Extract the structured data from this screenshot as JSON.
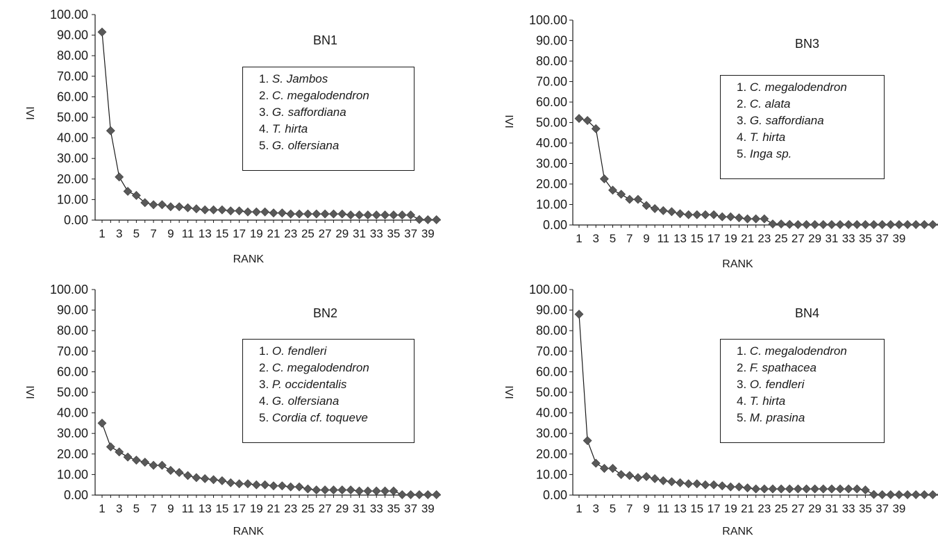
{
  "chart_data": [
    {
      "type": "line",
      "title": "BN1",
      "xlabel": "RANK",
      "ylabel": "IVI",
      "ylim": [
        0,
        100
      ],
      "xlim": [
        1,
        40
      ],
      "yticks": [
        "0.00",
        "10.00",
        "20.00",
        "30.00",
        "40.00",
        "50.00",
        "60.00",
        "70.00",
        "80.00",
        "90.00",
        "100.00"
      ],
      "xticks": [
        "1",
        "3",
        "5",
        "7",
        "9",
        "11",
        "13",
        "15",
        "17",
        "19",
        "21",
        "23",
        "25",
        "27",
        "29",
        "31",
        "33",
        "35",
        "37",
        "39"
      ],
      "legend": [
        {
          "num": "1.",
          "species": "S. Jambos"
        },
        {
          "num": "2.",
          "species": "C. megalodendron"
        },
        {
          "num": "3.",
          "species": "G. saffordiana"
        },
        {
          "num": "4.",
          "species": "T. hirta"
        },
        {
          "num": "5.",
          "species": "G. olfersiana"
        }
      ],
      "series": [
        {
          "values": [
            91.5,
            43.5,
            21,
            14,
            12,
            8.5,
            7.5,
            7.5,
            6.5,
            6.5,
            6,
            5.5,
            5,
            5,
            5,
            4.5,
            4.5,
            4,
            4,
            4,
            3.5,
            3.5,
            3,
            3,
            3,
            3,
            3,
            3,
            3,
            2.5,
            2.5,
            2.5,
            2.5,
            2.5,
            2.5,
            2.5,
            2.5,
            0.3,
            0.2,
            0.2
          ]
        }
      ]
    },
    {
      "type": "line",
      "title": "BN3",
      "xlabel": "RANK",
      "ylabel": "IVI",
      "ylim": [
        0,
        100
      ],
      "xlim": [
        1,
        44
      ],
      "yticks": [
        "0.00",
        "10.00",
        "20.00",
        "30.00",
        "40.00",
        "50.00",
        "60.00",
        "70.00",
        "80.00",
        "90.00",
        "100.00"
      ],
      "xticks": [
        "1",
        "3",
        "5",
        "7",
        "9",
        "11",
        "13",
        "15",
        "17",
        "19",
        "21",
        "23",
        "25",
        "27",
        "29",
        "31",
        "33",
        "35",
        "37",
        "39"
      ],
      "legend": [
        {
          "num": "1.",
          "species": "C. megalodendron"
        },
        {
          "num": "2.",
          "species": "C. alata"
        },
        {
          "num": "3.",
          "species": "G. saffordiana"
        },
        {
          "num": "4.",
          "species": "T. hirta"
        },
        {
          "num": "5.",
          "species": "Inga sp."
        }
      ],
      "series": [
        {
          "values": [
            52,
            51,
            47,
            22.5,
            17,
            15,
            12.5,
            12.5,
            9.5,
            8,
            7,
            6.5,
            5.5,
            5,
            5,
            5,
            5,
            4,
            4,
            3.5,
            3,
            3,
            3,
            0.5,
            0.5,
            0.3,
            0.2,
            0.2,
            0.2,
            0.2,
            0.2,
            0.2,
            0.2,
            0.2,
            0.2,
            0.2,
            0.2,
            0.2,
            0.2,
            0.2,
            0.2,
            0.2,
            0.2,
            0.2
          ]
        }
      ]
    },
    {
      "type": "line",
      "title": "BN2",
      "xlabel": "RANK",
      "ylabel": "IVI",
      "ylim": [
        0,
        100
      ],
      "xlim": [
        1,
        40
      ],
      "yticks": [
        "0.00",
        "10.00",
        "20.00",
        "30.00",
        "40.00",
        "50.00",
        "60.00",
        "70.00",
        "80.00",
        "90.00",
        "100.00"
      ],
      "xticks": [
        "1",
        "3",
        "5",
        "7",
        "9",
        "11",
        "13",
        "15",
        "17",
        "19",
        "21",
        "23",
        "25",
        "27",
        "29",
        "31",
        "33",
        "35",
        "37",
        "39"
      ],
      "legend": [
        {
          "num": "1.",
          "species": "O. fendleri"
        },
        {
          "num": "2.",
          "species": "C. megalodendron"
        },
        {
          "num": "3.",
          "species": "P. occidentalis"
        },
        {
          "num": "4.",
          "species": "G. olfersiana"
        },
        {
          "num": "5.",
          "species": "Cordia cf. toqueve"
        }
      ],
      "series": [
        {
          "values": [
            35,
            23.5,
            21,
            18.5,
            17,
            16,
            14.5,
            14.5,
            12,
            11,
            9.5,
            8.5,
            8,
            7.5,
            7,
            6,
            5.5,
            5.5,
            5,
            5,
            4.5,
            4.5,
            4,
            4,
            3,
            2.5,
            2.5,
            2.5,
            2.5,
            2.5,
            2,
            2,
            2,
            2,
            2,
            0.2,
            0.2,
            0.2,
            0.2,
            0.2
          ]
        }
      ]
    },
    {
      "type": "line",
      "title": "BN4",
      "xlabel": "RANK",
      "ylabel": "IVI",
      "ylim": [
        0,
        100
      ],
      "xlim": [
        1,
        44
      ],
      "yticks": [
        "0.00",
        "10.00",
        "20.00",
        "30.00",
        "40.00",
        "50.00",
        "60.00",
        "70.00",
        "80.00",
        "90.00",
        "100.00"
      ],
      "xticks": [
        "1",
        "3",
        "5",
        "7",
        "9",
        "11",
        "13",
        "15",
        "17",
        "19",
        "21",
        "23",
        "25",
        "27",
        "29",
        "31",
        "33",
        "35",
        "37",
        "39"
      ],
      "legend": [
        {
          "num": "1.",
          "species": "C. megalodendron"
        },
        {
          "num": "2.",
          "species": "F. spathacea"
        },
        {
          "num": "3.",
          "species": "O. fendleri"
        },
        {
          "num": "4.",
          "species": "T. hirta"
        },
        {
          "num": "5.",
          "species": "M. prasina"
        }
      ],
      "series": [
        {
          "values": [
            88,
            26.5,
            15.5,
            13,
            13,
            10,
            9.5,
            8.5,
            9,
            8,
            7,
            6.5,
            6,
            5.5,
            5.5,
            5,
            5,
            4.5,
            4,
            4,
            3.5,
            3,
            3,
            3,
            3,
            3,
            3,
            3,
            3,
            3,
            3,
            3,
            3,
            3,
            2.5,
            0.3,
            0.2,
            0.2,
            0.2,
            0.2,
            0.2,
            0.2,
            0.2,
            0.2
          ]
        }
      ]
    }
  ],
  "style": {
    "line_color": "#1a1a1a",
    "marker_color": "#595959",
    "axis_color": "#1a1a1a"
  }
}
